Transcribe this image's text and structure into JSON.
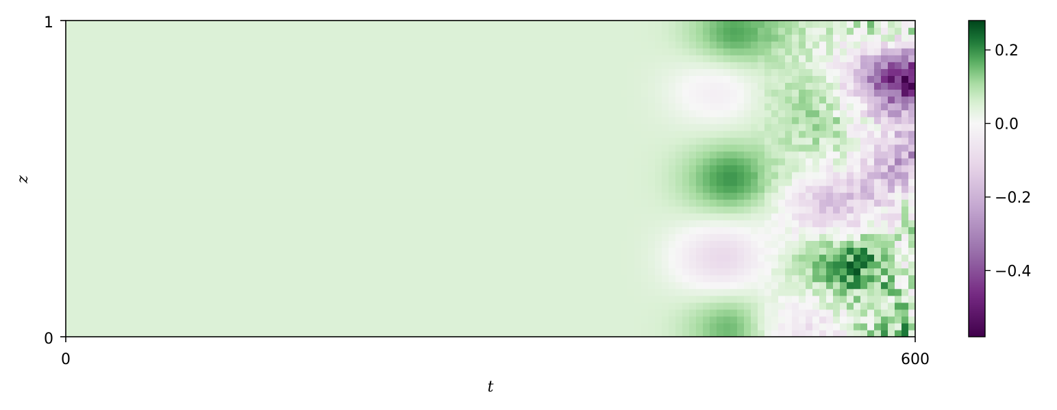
{
  "chart_data": {
    "type": "heatmap",
    "title": "",
    "xlabel": "t",
    "ylabel": "z",
    "xlim": [
      0,
      600
    ],
    "ylim": [
      0,
      1
    ],
    "x_ticks": [
      {
        "value": 0,
        "label": "0"
      },
      {
        "value": 600,
        "label": "600"
      }
    ],
    "y_ticks": [
      {
        "value": 0,
        "label": "0"
      },
      {
        "value": 1,
        "label": "1"
      }
    ],
    "colormap": "PRGn",
    "colorbar": {
      "range": [
        -0.58,
        0.28
      ],
      "ticks": [
        {
          "value": 0.2,
          "label": "0.2"
        },
        {
          "value": 0.0,
          "label": "0.0"
        },
        {
          "value": -0.2,
          "label": "−0.2"
        },
        {
          "value": -0.4,
          "label": "−0.4"
        }
      ]
    },
    "field": {
      "background_value": 0.05,
      "onset_t": 420,
      "features": [
        {
          "t": 470,
          "z": 0.96,
          "value": 0.18
        },
        {
          "t": 470,
          "z": 0.03,
          "value": 0.18
        },
        {
          "t": 465,
          "z": 0.5,
          "value": 0.2
        },
        {
          "t": 455,
          "z": 0.25,
          "value": -0.12
        },
        {
          "t": 452,
          "z": 0.78,
          "value": -0.05
        },
        {
          "t": 560,
          "z": 0.24,
          "value": 0.24
        },
        {
          "t": 530,
          "z": 0.75,
          "value": 0.12
        },
        {
          "t": 595,
          "z": 0.82,
          "value": -0.45
        },
        {
          "t": 595,
          "z": 0.55,
          "value": -0.3
        },
        {
          "t": 545,
          "z": 0.42,
          "value": -0.15
        },
        {
          "t": 575,
          "z": 0.6,
          "value": 0.1
        },
        {
          "t": 520,
          "z": 0.03,
          "value": -0.1
        }
      ]
    }
  }
}
